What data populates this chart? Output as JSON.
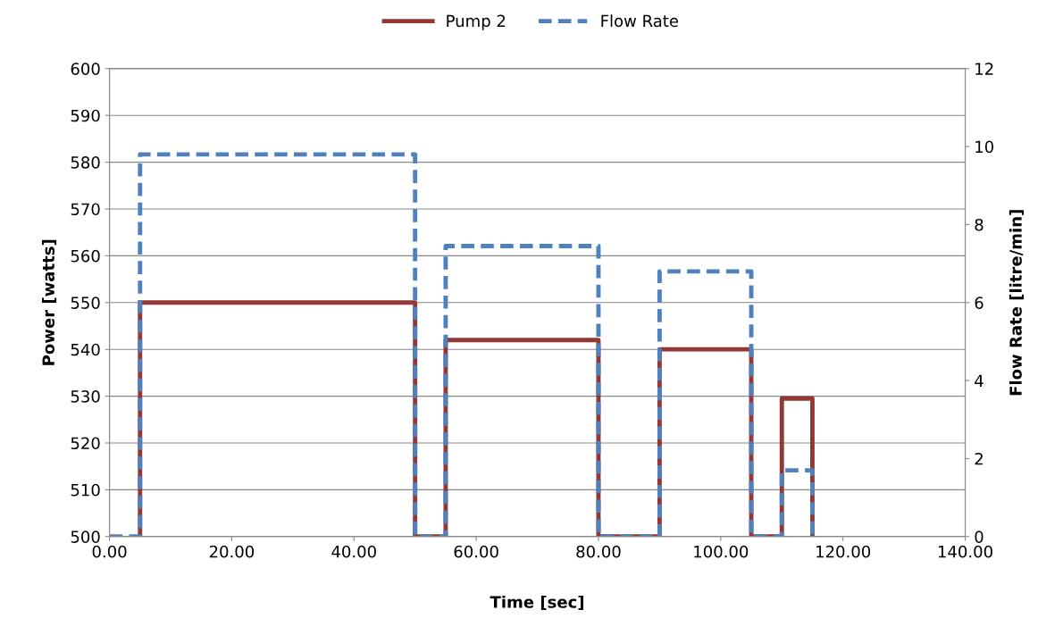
{
  "chart_data": {
    "type": "step",
    "xlabel": "Time [sec]",
    "ylabel": "Power [watts]",
    "y2label": "Flow Rate [litre/min]",
    "xlim": [
      0,
      140
    ],
    "xticks": [
      {
        "value": 0,
        "label": "0.00"
      },
      {
        "value": 20,
        "label": "20.00"
      },
      {
        "value": 40,
        "label": "40.00"
      },
      {
        "value": 60,
        "label": "60.00"
      },
      {
        "value": 80,
        "label": "80.00"
      },
      {
        "value": 100,
        "label": "100.00"
      },
      {
        "value": 120,
        "label": "120.00"
      },
      {
        "value": 140,
        "label": "140.00"
      }
    ],
    "ylim": [
      500,
      600
    ],
    "yticks": [
      500,
      510,
      520,
      530,
      540,
      550,
      560,
      570,
      580,
      590,
      600
    ],
    "y2lim": [
      0,
      12
    ],
    "y2ticks": [
      0,
      2,
      4,
      6,
      8,
      10,
      12
    ],
    "grid": "y",
    "legend": "top",
    "marker": "none",
    "series": [
      {
        "name": "Pump 2",
        "color": "#953735",
        "line_style": "solid",
        "x": [
          5,
          5,
          50,
          55,
          80,
          90,
          105,
          110,
          115
        ],
        "values": [
          500,
          550,
          500,
          542,
          500,
          540,
          500,
          529.5,
          500
        ]
      },
      {
        "name": "Flow Rate",
        "color": "#4f81bd",
        "line_style": "dashed",
        "axis": "y2",
        "x": [
          0,
          5,
          50,
          55,
          80,
          90,
          105,
          110,
          115
        ],
        "values": [
          0,
          9.8,
          0,
          7.45,
          0,
          6.8,
          0,
          1.7,
          0
        ]
      }
    ]
  }
}
